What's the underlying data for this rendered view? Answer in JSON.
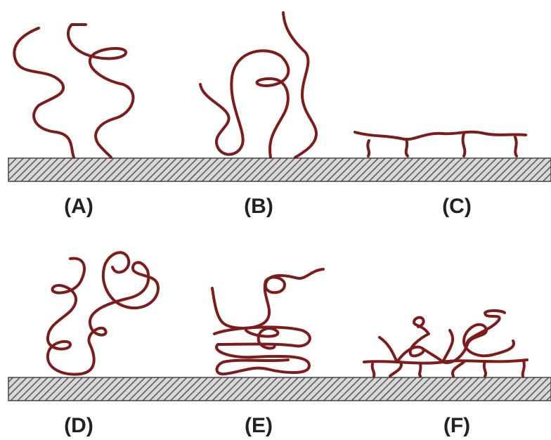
{
  "panels": [
    {
      "label": "(A)"
    },
    {
      "label": "(B)"
    },
    {
      "label": "(C)"
    },
    {
      "label": "(D)"
    },
    {
      "label": "(E)"
    },
    {
      "label": "(F)"
    }
  ]
}
